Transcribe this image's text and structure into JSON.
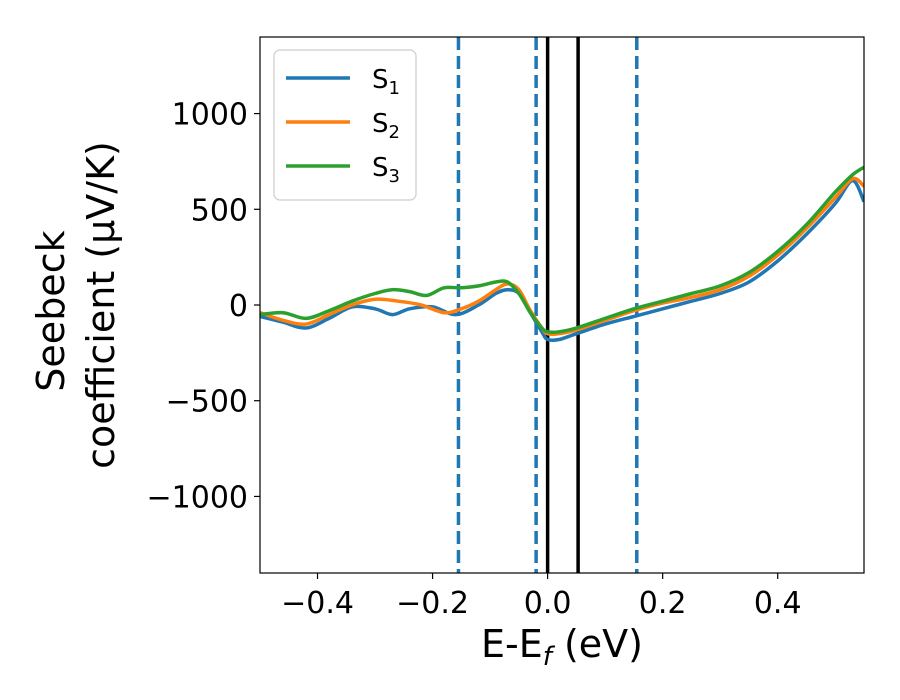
{
  "chart_data": {
    "type": "line",
    "xlabel": "E-E",
    "xlabel_sub": "f",
    "xlabel_unit": " (eV)",
    "ylabel_line1": "Seebeck",
    "ylabel_line2": "coefficient  (μV/K)",
    "xlim": [
      -0.5,
      0.55
    ],
    "ylim": [
      -1400,
      1400
    ],
    "xticks": [
      -0.4,
      -0.2,
      0.0,
      0.2,
      0.4
    ],
    "xtick_labels": [
      "−0.4",
      "−0.2",
      "0.0",
      "0.2",
      "0.4"
    ],
    "yticks": [
      -1000,
      -500,
      0,
      500,
      1000
    ],
    "ytick_labels": [
      "−1000",
      "−500",
      "0",
      "500",
      "1000"
    ],
    "legend_position": "top-left",
    "vlines_dashed": [
      -0.155,
      -0.02,
      0.155
    ],
    "vlines_solid": [
      0.0,
      0.053
    ],
    "dashed_color": "#1f77b4",
    "solid_color": "#000000",
    "series": [
      {
        "name": "S",
        "sub": "1",
        "color": "#1f77b4",
        "x": [
          -0.5,
          -0.46,
          -0.42,
          -0.38,
          -0.34,
          -0.3,
          -0.27,
          -0.24,
          -0.2,
          -0.16,
          -0.12,
          -0.09,
          -0.07,
          -0.05,
          -0.03,
          -0.01,
          0.0,
          0.02,
          0.05,
          0.1,
          0.15,
          0.2,
          0.25,
          0.3,
          0.35,
          0.4,
          0.45,
          0.5,
          0.53,
          0.55
        ],
        "y": [
          -60,
          -90,
          -120,
          -70,
          -10,
          -20,
          -50,
          -20,
          -10,
          -50,
          0,
          60,
          80,
          60,
          -40,
          -140,
          -180,
          -180,
          -150,
          -100,
          -60,
          -20,
          20,
          60,
          120,
          230,
          370,
          530,
          650,
          540
        ]
      },
      {
        "name": "S",
        "sub": "2",
        "color": "#ff7f0e",
        "x": [
          -0.5,
          -0.46,
          -0.42,
          -0.38,
          -0.34,
          -0.3,
          -0.26,
          -0.22,
          -0.18,
          -0.15,
          -0.12,
          -0.09,
          -0.07,
          -0.05,
          -0.03,
          -0.01,
          0.0,
          0.02,
          0.05,
          0.1,
          0.15,
          0.2,
          0.25,
          0.3,
          0.35,
          0.4,
          0.45,
          0.5,
          0.53,
          0.55
        ],
        "y": [
          -40,
          -80,
          -100,
          -50,
          0,
          30,
          20,
          0,
          -40,
          -20,
          20,
          80,
          110,
          80,
          -30,
          -120,
          -150,
          -150,
          -130,
          -80,
          -30,
          10,
          40,
          80,
          150,
          260,
          400,
          560,
          660,
          620
        ]
      },
      {
        "name": "S",
        "sub": "3",
        "color": "#2ca02c",
        "x": [
          -0.5,
          -0.46,
          -0.42,
          -0.38,
          -0.34,
          -0.3,
          -0.27,
          -0.24,
          -0.21,
          -0.18,
          -0.15,
          -0.12,
          -0.09,
          -0.07,
          -0.05,
          -0.03,
          -0.01,
          0.0,
          0.02,
          0.05,
          0.1,
          0.15,
          0.2,
          0.25,
          0.3,
          0.35,
          0.4,
          0.45,
          0.5,
          0.53,
          0.55
        ],
        "y": [
          -50,
          -40,
          -70,
          -30,
          20,
          60,
          80,
          70,
          50,
          90,
          90,
          100,
          120,
          120,
          60,
          -40,
          -120,
          -140,
          -140,
          -120,
          -70,
          -20,
          20,
          60,
          100,
          170,
          280,
          420,
          590,
          680,
          720
        ]
      }
    ]
  }
}
